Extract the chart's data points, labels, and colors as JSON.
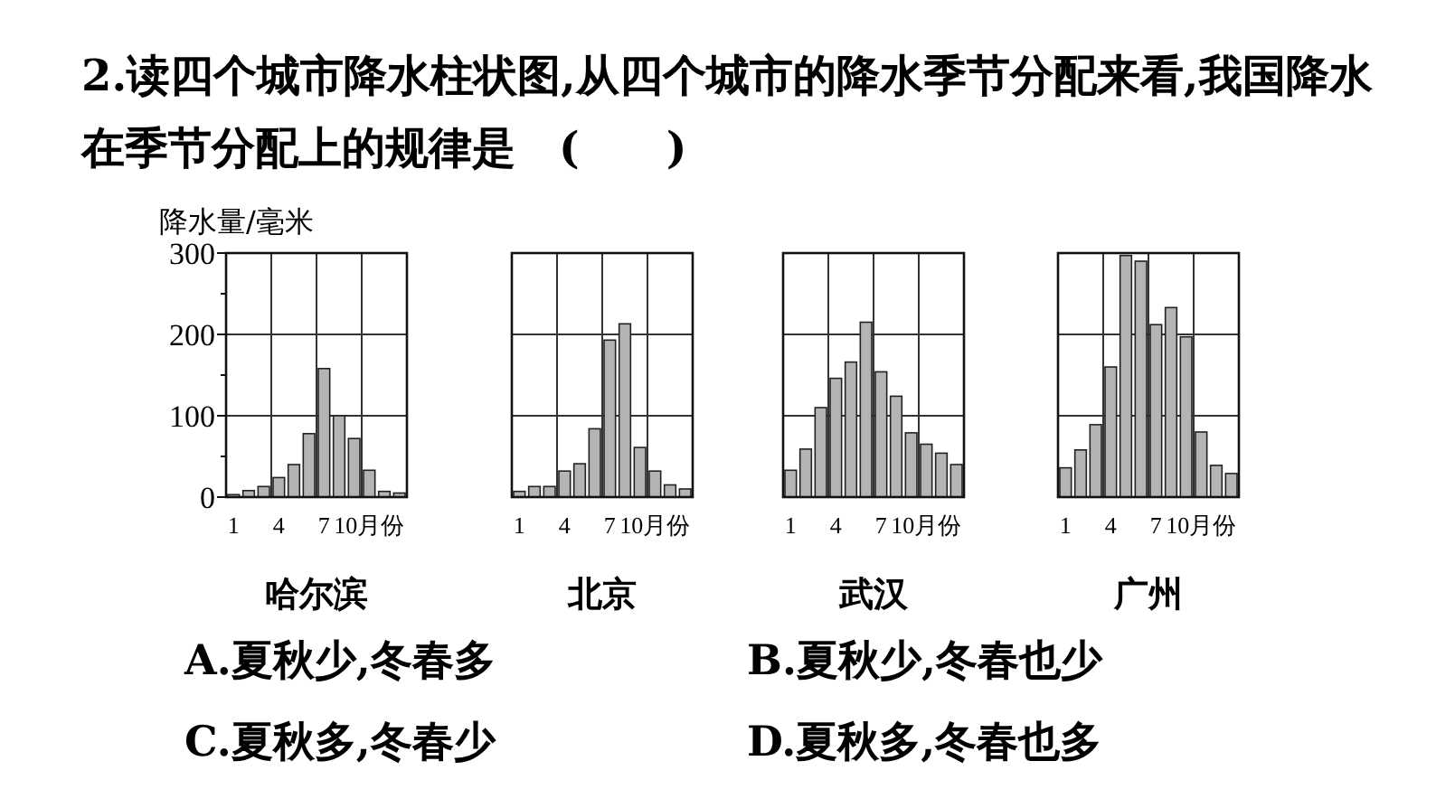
{
  "chart_data": [
    {
      "type": "other",
      "title": "2.读四个城市降水柱状图,从四个城市的降水季节分配来看,我国降水在季节分配上的规律是　(　　)",
      "annotations": [
        "A.夏秋少,冬春多",
        "B.夏秋少,冬春也少",
        "C.夏秋多,冬春少",
        "D.夏秋多,冬春也多"
      ]
    },
    {
      "type": "bar",
      "xlabel": "哈尔滨",
      "ylabel": "降水量/毫米",
      "categories": [
        "1",
        null,
        null,
        "4",
        null,
        null,
        "7",
        null,
        null,
        "10月份",
        null,
        null
      ],
      "values": [
        3,
        8,
        13,
        24,
        40,
        78,
        158,
        100,
        72,
        33,
        7,
        5
      ],
      "color": "#b4b4b4",
      "ylim": [
        0,
        300
      ],
      "yticks": [
        0,
        {
          "value": 50,
          "label": null
        },
        100,
        {
          "value": 150,
          "label": null
        },
        200,
        {
          "value": 250,
          "label": null
        },
        300
      ],
      "grid": true
    },
    {
      "type": "bar",
      "xlabel": "北京",
      "categories": [
        "1",
        null,
        null,
        "4",
        null,
        null,
        "7",
        null,
        null,
        "10月份",
        null,
        null
      ],
      "values": [
        7,
        13,
        13,
        32,
        41,
        84,
        193,
        213,
        61,
        32,
        15,
        10
      ],
      "color": "#b4b4b4",
      "ylim": [
        0,
        300
      ],
      "yticks": [
        0,
        100,
        200,
        300
      ],
      "grid": true,
      "tick_labels": "x"
    },
    {
      "type": "bar",
      "xlabel": "武汉",
      "categories": [
        "1",
        null,
        null,
        "4",
        null,
        null,
        "7",
        null,
        null,
        "10月份",
        null,
        null
      ],
      "values": [
        33,
        59,
        110,
        146,
        166,
        215,
        154,
        124,
        79,
        65,
        54,
        40
      ],
      "color": "#b4b4b4",
      "ylim": [
        0,
        300
      ],
      "yticks": [
        0,
        100,
        200,
        300
      ],
      "grid": true,
      "tick_labels": "x"
    },
    {
      "type": "bar",
      "xlabel": "广州",
      "categories": [
        "1",
        null,
        null,
        "4",
        null,
        null,
        "7",
        null,
        null,
        "10月份",
        null,
        null
      ],
      "values": [
        36,
        58,
        89,
        160,
        297,
        290,
        212,
        233,
        197,
        80,
        39,
        29
      ],
      "color": "#b4b4b4",
      "ylim": [
        0,
        300
      ],
      "yticks": [
        0,
        100,
        200,
        300
      ],
      "grid": true,
      "tick_labels": "x"
    }
  ]
}
